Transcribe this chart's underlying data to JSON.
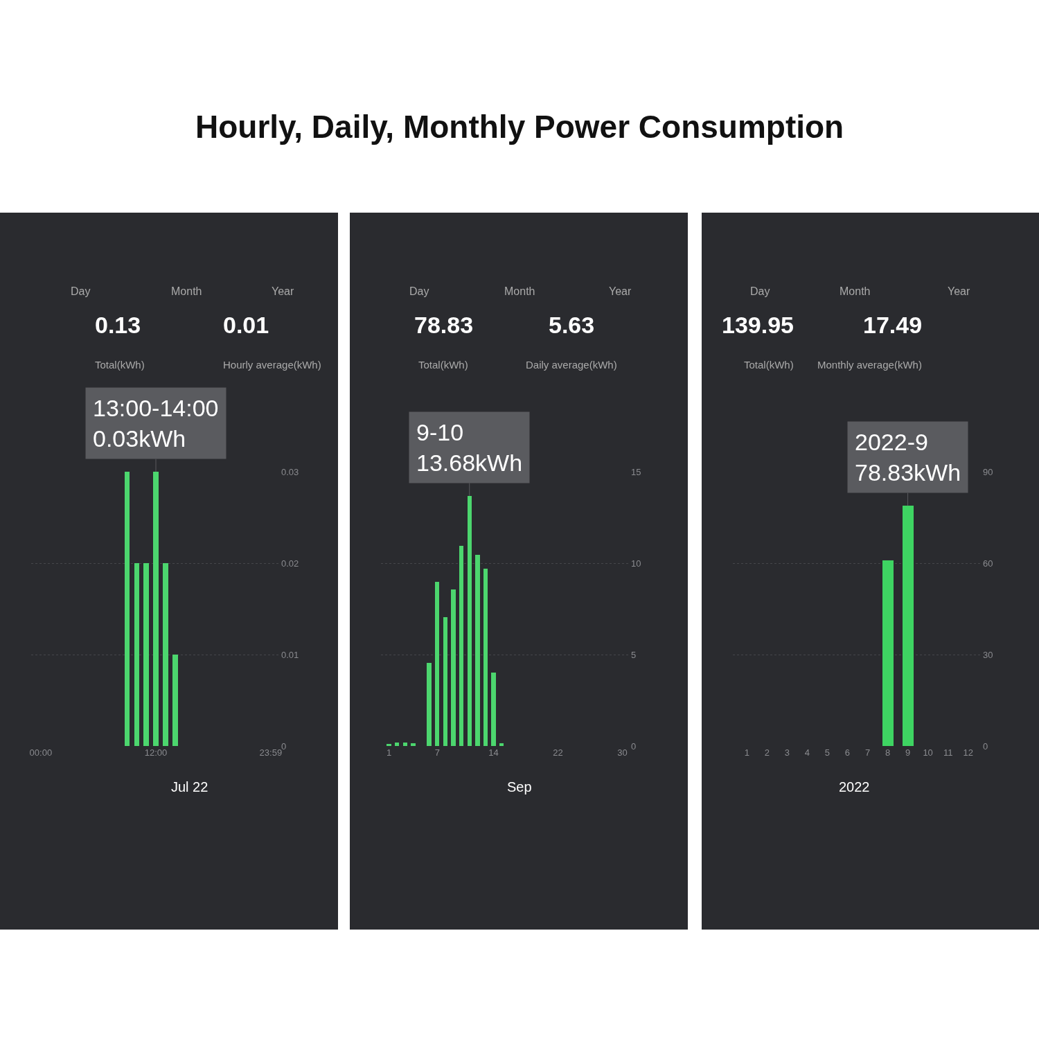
{
  "chart_data": [
    {
      "type": "bar",
      "title": "Hourly, Daily, Monthly Power Consumption",
      "x": [
        9,
        10,
        11,
        12,
        13,
        14
      ],
      "values": [
        0.03,
        0.02,
        0.02,
        0.03,
        0.02,
        0.01
      ],
      "color": "#4cd66e",
      "xlim": [
        -1,
        25
      ],
      "xticks": [
        {
          "value": 0,
          "label": "00:00"
        },
        {
          "value": 12,
          "label": "12:00"
        },
        {
          "value": 23.98,
          "label": "23:59"
        }
      ],
      "ylim": [
        0,
        0.03
      ],
      "yticks": [
        0,
        0.01,
        0.02,
        0.03
      ],
      "grid": "y",
      "annotations": [
        "Day",
        "Month",
        "Year",
        "0.13",
        "Total(kWh)",
        "0.01",
        "Hourly average(kWh)",
        "Jul 22",
        {
          "text": "13:00-14:00\n0.03kWh",
          "x": 12,
          "y": 0.03
        }
      ]
    },
    {
      "type": "bar",
      "x": [
        1,
        2,
        3,
        4,
        5,
        6,
        7,
        8,
        9,
        10,
        11,
        12,
        13,
        14,
        15
      ],
      "values": [
        0.1,
        0.2,
        0.2,
        0.15,
        null,
        4.56,
        8.96,
        7.03,
        8.57,
        10.95,
        13.68,
        10.44,
        9.71,
        4.01,
        0.15
      ],
      "color": "#4cd66e",
      "xlim": [
        0,
        31
      ],
      "xticks": [
        1,
        7,
        14,
        22,
        30
      ],
      "ylim": [
        0,
        15
      ],
      "yticks": [
        0,
        5,
        10,
        15
      ],
      "grid": "y",
      "annotations": [
        "Day",
        "Month",
        "Year",
        "78.83",
        "Total(kWh)",
        "5.63",
        "Daily average(kWh)",
        "Sep",
        {
          "text": "9-10\n13.68kWh",
          "x": 11,
          "y": 13.68
        }
      ]
    },
    {
      "type": "bar",
      "x": [
        8,
        9
      ],
      "values": [
        61,
        78.83
      ],
      "color": "#3ed462",
      "xlim": [
        0.3,
        12.7
      ],
      "xticks": [
        1,
        2,
        3,
        4,
        5,
        6,
        7,
        8,
        9,
        10,
        11,
        12
      ],
      "ylim": [
        0,
        90
      ],
      "yticks": [
        0,
        30,
        60,
        90
      ],
      "grid": "y",
      "annotations": [
        "Day",
        "Month",
        "Year",
        "139.95",
        "Total(kWh)",
        "17.49",
        "Monthly average(kWh)",
        "2022",
        {
          "text": "2022-9\n78.83kWh",
          "x": 9,
          "y": 78.83
        }
      ]
    }
  ]
}
